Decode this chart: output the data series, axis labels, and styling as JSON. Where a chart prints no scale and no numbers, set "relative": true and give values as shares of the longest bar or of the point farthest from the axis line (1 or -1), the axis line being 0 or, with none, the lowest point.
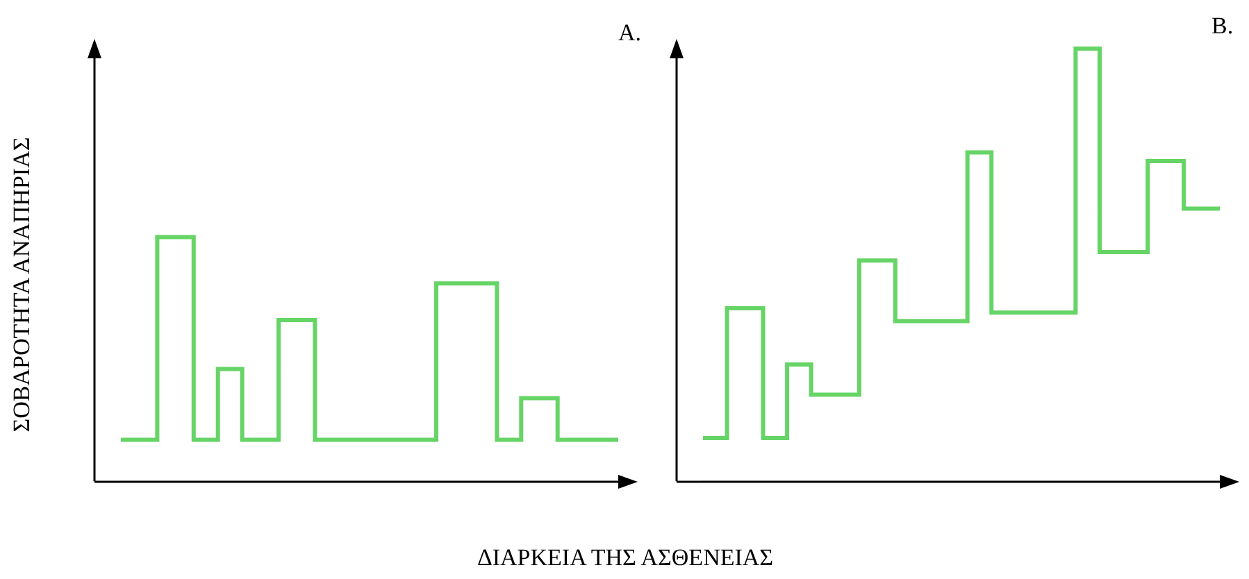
{
  "chart_data": [
    {
      "type": "step",
      "title": "A.",
      "xlabel": "ΔΙΑΡΚΕΙΑ ΤΗΣ ΑΣΘΕΝΕΙΑΣ",
      "ylabel": "ΣΟΒΑΡΟΤΗΤΑ ΑΝΑΠΗΡΙΑΣ",
      "relative": true,
      "legend": false,
      "marker": "none",
      "color": "#66d466",
      "categories": [
        null,
        null,
        null,
        null,
        null,
        null,
        null,
        null,
        null,
        null,
        null,
        null,
        null,
        null,
        null,
        null,
        null,
        null,
        null,
        null,
        null,
        null,
        null,
        null,
        null,
        null,
        null,
        null,
        null,
        null,
        null,
        null,
        null,
        null,
        null,
        null,
        null,
        null,
        null,
        null,
        null,
        null
      ],
      "values": [
        0.17,
        0.17,
        0.17,
        1,
        1,
        1,
        0.17,
        0.17,
        0.46,
        0.46,
        0.17,
        0.17,
        0.17,
        0.66,
        0.66,
        0.66,
        0.17,
        0.17,
        0.17,
        0.17,
        0.17,
        0.17,
        0.17,
        0.17,
        0.17,
        0.17,
        0.81,
        0.81,
        0.81,
        0.81,
        0.81,
        0.17,
        0.17,
        0.34,
        0.34,
        0.34,
        0.17,
        0.17,
        0.17,
        0.17,
        0.17,
        0.17
      ]
    },
    {
      "type": "step",
      "title": "B.",
      "relative": true,
      "legend": false,
      "marker": "none",
      "color": "#66d466",
      "categories": [
        null,
        null,
        null,
        null,
        null,
        null,
        null,
        null,
        null,
        null,
        null,
        null,
        null,
        null,
        null,
        null,
        null,
        null,
        null,
        null,
        null,
        null,
        null,
        null,
        null,
        null,
        null,
        null,
        null,
        null,
        null,
        null,
        null,
        null,
        null,
        null,
        null,
        null,
        null,
        null,
        null,
        null,
        null,
        null
      ],
      "values": [
        0.1,
        0.1,
        0.4,
        0.4,
        0.4,
        0.1,
        0.1,
        0.27,
        0.27,
        0.2,
        0.2,
        0.2,
        0.2,
        0.51,
        0.51,
        0.51,
        0.37,
        0.37,
        0.37,
        0.37,
        0.37,
        0.37,
        0.76,
        0.76,
        0.39,
        0.39,
        0.39,
        0.39,
        0.39,
        0.39,
        0.39,
        1,
        1,
        0.53,
        0.53,
        0.53,
        0.53,
        0.74,
        0.74,
        0.74,
        0.63,
        0.63,
        0.63,
        0.63
      ]
    }
  ]
}
